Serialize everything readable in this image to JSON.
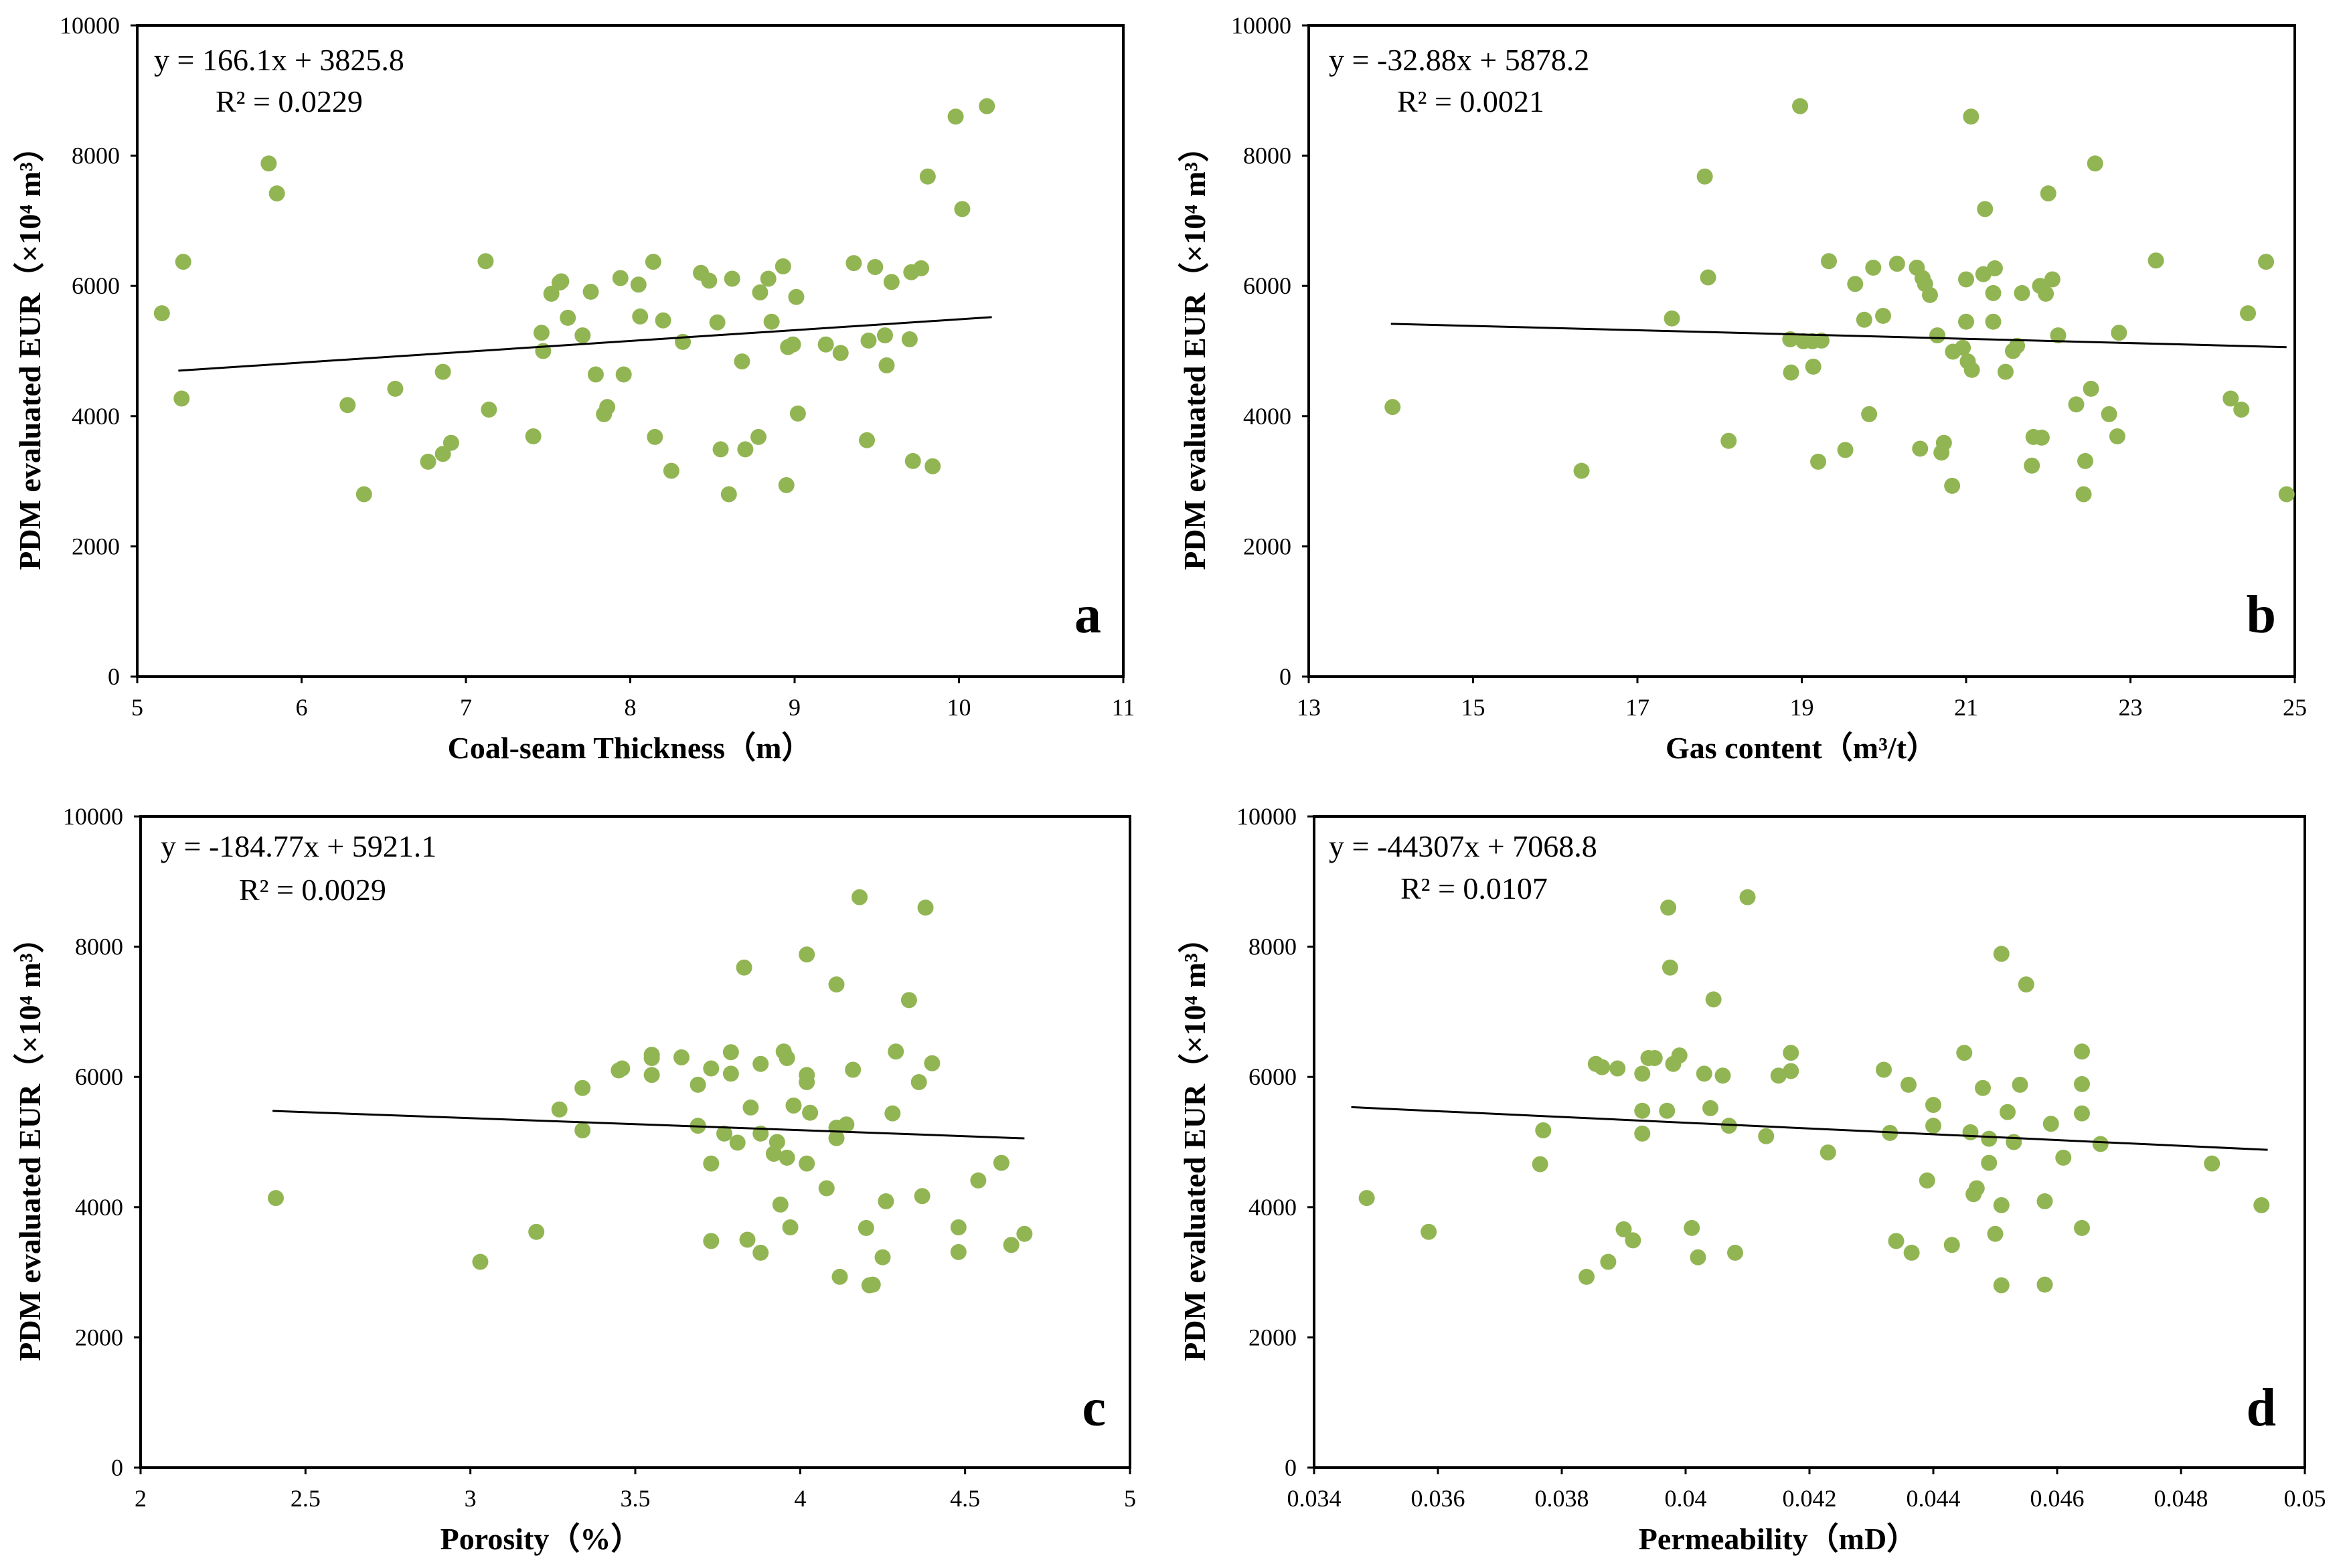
{
  "point_color": "#92B553",
  "chart_data": [
    {
      "type": "scatter",
      "panel": "a",
      "xlabel": "Coal-seam Thickness（m）",
      "ylabel": "PDM evaluated EUR（×10⁴ m³）",
      "xlim": [
        5,
        11
      ],
      "ylim": [
        0,
        10000
      ],
      "xticks": [
        "5",
        "6",
        "7",
        "8",
        "9",
        "10",
        "11"
      ],
      "yticks": [
        "0",
        "2000",
        "4000",
        "6000",
        "8000",
        "10000"
      ],
      "equation": "y = 166.1x + 3825.8",
      "r2": "R² = 0.0229",
      "trend": {
        "slope": 166.1,
        "intercept": 3825.8,
        "x_range": [
          5.25,
          10.2
        ]
      },
      "points": [
        [
          5.15,
          5580
        ],
        [
          5.27,
          4270
        ],
        [
          5.28,
          6370
        ],
        [
          5.8,
          7880
        ],
        [
          5.85,
          7420
        ],
        [
          6.28,
          4170
        ],
        [
          6.38,
          2800
        ],
        [
          6.57,
          4420
        ],
        [
          6.77,
          3300
        ],
        [
          6.86,
          3420
        ],
        [
          6.86,
          4680
        ],
        [
          6.91,
          3590
        ],
        [
          7.12,
          6380
        ],
        [
          7.14,
          4100
        ],
        [
          7.41,
          3690
        ],
        [
          7.46,
          5280
        ],
        [
          7.47,
          5000
        ],
        [
          7.52,
          5880
        ],
        [
          7.57,
          6050
        ],
        [
          7.58,
          6070
        ],
        [
          7.62,
          5510
        ],
        [
          7.71,
          5240
        ],
        [
          7.76,
          5910
        ],
        [
          7.79,
          4640
        ],
        [
          7.84,
          4030
        ],
        [
          7.86,
          4140
        ],
        [
          7.94,
          6120
        ],
        [
          7.96,
          4640
        ],
        [
          8.05,
          6020
        ],
        [
          8.06,
          5530
        ],
        [
          8.14,
          6370
        ],
        [
          8.15,
          3680
        ],
        [
          8.2,
          5470
        ],
        [
          8.25,
          3160
        ],
        [
          8.32,
          5140
        ],
        [
          8.43,
          6200
        ],
        [
          8.48,
          6080
        ],
        [
          8.53,
          5440
        ],
        [
          8.55,
          3490
        ],
        [
          8.6,
          2800
        ],
        [
          8.62,
          6110
        ],
        [
          8.68,
          4840
        ],
        [
          8.7,
          3490
        ],
        [
          8.78,
          3680
        ],
        [
          8.79,
          5900
        ],
        [
          8.84,
          6110
        ],
        [
          8.86,
          5450
        ],
        [
          8.93,
          6300
        ],
        [
          8.95,
          2940
        ],
        [
          8.96,
          5060
        ],
        [
          8.99,
          5100
        ],
        [
          9.01,
          5830
        ],
        [
          9.02,
          4040
        ],
        [
          9.19,
          5100
        ],
        [
          9.28,
          4970
        ],
        [
          9.36,
          6350
        ],
        [
          9.44,
          3630
        ],
        [
          9.45,
          5160
        ],
        [
          9.49,
          6290
        ],
        [
          9.55,
          5240
        ],
        [
          9.56,
          4780
        ],
        [
          9.59,
          6060
        ],
        [
          9.7,
          5180
        ],
        [
          9.71,
          6210
        ],
        [
          9.72,
          3310
        ],
        [
          9.77,
          6270
        ],
        [
          9.81,
          7680
        ],
        [
          9.84,
          3230
        ],
        [
          9.98,
          8600
        ],
        [
          10.02,
          7180
        ],
        [
          10.17,
          8760
        ]
      ]
    },
    {
      "type": "scatter",
      "panel": "b",
      "xlabel": "Gas content（m³/t）",
      "ylabel": "PDM evaluated EUR（×10⁴ m³）",
      "xlim": [
        13,
        25
      ],
      "ylim": [
        0,
        10000
      ],
      "xticks": [
        "13",
        "15",
        "17",
        "19",
        "21",
        "23",
        "25"
      ],
      "yticks": [
        "0",
        "2000",
        "4000",
        "6000",
        "8000",
        "10000"
      ],
      "equation": "y = -32.88x + 5878.2",
      "r2": "R² = 0.0021",
      "trend": {
        "slope": -32.88,
        "intercept": 5878.2,
        "x_range": [
          14.0,
          24.9
        ]
      },
      "points": [
        [
          14.02,
          4140
        ],
        [
          16.32,
          3160
        ],
        [
          17.42,
          5500
        ],
        [
          17.82,
          7680
        ],
        [
          17.86,
          6130
        ],
        [
          18.11,
          3620
        ],
        [
          18.86,
          5180
        ],
        [
          18.87,
          4670
        ],
        [
          18.98,
          8760
        ],
        [
          19.02,
          5150
        ],
        [
          19.13,
          5150
        ],
        [
          19.14,
          4760
        ],
        [
          19.2,
          3300
        ],
        [
          19.24,
          5160
        ],
        [
          19.33,
          6380
        ],
        [
          19.53,
          3480
        ],
        [
          19.65,
          6030
        ],
        [
          19.76,
          5480
        ],
        [
          19.82,
          4030
        ],
        [
          19.87,
          6280
        ],
        [
          19.99,
          5540
        ],
        [
          20.16,
          6340
        ],
        [
          20.4,
          6280
        ],
        [
          20.44,
          3500
        ],
        [
          20.47,
          6120
        ],
        [
          20.5,
          6030
        ],
        [
          20.56,
          5860
        ],
        [
          20.65,
          5240
        ],
        [
          20.7,
          3440
        ],
        [
          20.73,
          3590
        ],
        [
          20.83,
          2930
        ],
        [
          20.84,
          4990
        ],
        [
          20.96,
          5050
        ],
        [
          21.0,
          5450
        ],
        [
          21.0,
          6100
        ],
        [
          21.02,
          4840
        ],
        [
          21.06,
          8600
        ],
        [
          21.07,
          4710
        ],
        [
          21.21,
          6180
        ],
        [
          21.23,
          7180
        ],
        [
          21.33,
          5450
        ],
        [
          21.33,
          5890
        ],
        [
          21.35,
          6270
        ],
        [
          21.48,
          4680
        ],
        [
          21.57,
          5000
        ],
        [
          21.62,
          5080
        ],
        [
          21.68,
          5890
        ],
        [
          21.8,
          3240
        ],
        [
          21.82,
          3680
        ],
        [
          21.9,
          6000
        ],
        [
          21.92,
          3670
        ],
        [
          21.97,
          5880
        ],
        [
          22.0,
          7420
        ],
        [
          22.05,
          6100
        ],
        [
          22.12,
          5240
        ],
        [
          22.34,
          4180
        ],
        [
          22.43,
          2800
        ],
        [
          22.45,
          3310
        ],
        [
          22.52,
          4420
        ],
        [
          22.57,
          7880
        ],
        [
          22.74,
          4030
        ],
        [
          22.84,
          3690
        ],
        [
          22.86,
          5280
        ],
        [
          23.31,
          6390
        ],
        [
          24.22,
          4270
        ],
        [
          24.35,
          4100
        ],
        [
          24.43,
          5580
        ],
        [
          24.65,
          6370
        ],
        [
          24.9,
          2800
        ]
      ]
    },
    {
      "type": "scatter",
      "panel": "c",
      "xlabel": "Porosity（%）",
      "ylabel": "PDM evaluated EUR（×10⁴ m³）",
      "xlim": [
        2,
        5
      ],
      "ylim": [
        0,
        10000
      ],
      "xticks": [
        "2",
        "2.5",
        "3",
        "3.5",
        "4",
        "4.5",
        "5"
      ],
      "yticks": [
        "0",
        "2000",
        "4000",
        "6000",
        "8000",
        "10000"
      ],
      "equation": "y = -184.77x + 5921.1",
      "r2": "R² = 0.0029",
      "trend": {
        "slope": -184.77,
        "intercept": 5921.1,
        "x_range": [
          2.4,
          4.68
        ]
      },
      "points": [
        [
          2.41,
          4140
        ],
        [
          3.03,
          3160
        ],
        [
          3.2,
          3620
        ],
        [
          3.27,
          5500
        ],
        [
          3.34,
          5830
        ],
        [
          3.34,
          5180
        ],
        [
          3.45,
          6100
        ],
        [
          3.46,
          6130
        ],
        [
          3.55,
          6290
        ],
        [
          3.55,
          6030
        ],
        [
          3.55,
          6340
        ],
        [
          3.64,
          6300
        ],
        [
          3.69,
          5880
        ],
        [
          3.69,
          5250
        ],
        [
          3.73,
          6130
        ],
        [
          3.73,
          4670
        ],
        [
          3.73,
          3480
        ],
        [
          3.77,
          5130
        ],
        [
          3.79,
          6380
        ],
        [
          3.79,
          6050
        ],
        [
          3.81,
          4990
        ],
        [
          3.83,
          7680
        ],
        [
          3.84,
          3500
        ],
        [
          3.85,
          5530
        ],
        [
          3.88,
          5130
        ],
        [
          3.88,
          6200
        ],
        [
          3.88,
          3300
        ],
        [
          3.92,
          4820
        ],
        [
          3.93,
          5000
        ],
        [
          3.94,
          4040
        ],
        [
          3.95,
          6390
        ],
        [
          3.96,
          6290
        ],
        [
          3.96,
          4760
        ],
        [
          3.97,
          3690
        ],
        [
          3.98,
          5560
        ],
        [
          4.02,
          7880
        ],
        [
          4.02,
          5920
        ],
        [
          4.02,
          6030
        ],
        [
          4.02,
          4670
        ],
        [
          4.03,
          5450
        ],
        [
          4.08,
          4290
        ],
        [
          4.11,
          7420
        ],
        [
          4.11,
          5060
        ],
        [
          4.11,
          5220
        ],
        [
          4.12,
          2930
        ],
        [
          4.14,
          5270
        ],
        [
          4.16,
          6110
        ],
        [
          4.18,
          8760
        ],
        [
          4.2,
          3680
        ],
        [
          4.21,
          2800
        ],
        [
          4.22,
          2810
        ],
        [
          4.25,
          3230
        ],
        [
          4.26,
          4090
        ],
        [
          4.28,
          5440
        ],
        [
          4.29,
          6390
        ],
        [
          4.33,
          7180
        ],
        [
          4.36,
          5920
        ],
        [
          4.37,
          4170
        ],
        [
          4.38,
          8600
        ],
        [
          4.4,
          6210
        ],
        [
          4.48,
          3690
        ],
        [
          4.48,
          3310
        ],
        [
          4.54,
          4410
        ],
        [
          4.61,
          4680
        ],
        [
          4.64,
          3420
        ],
        [
          4.68,
          3590
        ]
      ]
    },
    {
      "type": "scatter",
      "panel": "d",
      "xlabel": "Permeability（mD）",
      "ylabel": "PDM evaluated EUR（×10⁴ m³）",
      "xlim": [
        0.034,
        0.05
      ],
      "ylim": [
        0,
        10000
      ],
      "xticks": [
        "0.034",
        "0.036",
        "0.038",
        "0.04",
        "0.042",
        "0.044",
        "0.046",
        "0.048",
        "0.05"
      ],
      "yticks": [
        "0",
        "2000",
        "4000",
        "6000",
        "8000",
        "10000"
      ],
      "equation": "y = -44307x + 7068.8",
      "r2": "R² = 0.0107",
      "trend": {
        "slope": -44307,
        "intercept": 7068.8,
        "x_range": [
          0.0346,
          0.0494
        ]
      },
      "points": [
        [
          0.03485,
          4140
        ],
        [
          0.03585,
          3620
        ],
        [
          0.03765,
          4660
        ],
        [
          0.0377,
          5180
        ],
        [
          0.0384,
          2930
        ],
        [
          0.03855,
          6200
        ],
        [
          0.03865,
          6150
        ],
        [
          0.03875,
          3160
        ],
        [
          0.0389,
          6130
        ],
        [
          0.039,
          3660
        ],
        [
          0.03915,
          3490
        ],
        [
          0.0393,
          6050
        ],
        [
          0.0393,
          5480
        ],
        [
          0.0393,
          5130
        ],
        [
          0.0394,
          6290
        ],
        [
          0.0395,
          6290
        ],
        [
          0.03972,
          8600
        ],
        [
          0.03975,
          7680
        ],
        [
          0.0397,
          5480
        ],
        [
          0.0398,
          6200
        ],
        [
          0.0399,
          6330
        ],
        [
          0.0401,
          3680
        ],
        [
          0.0402,
          3230
        ],
        [
          0.0403,
          6050
        ],
        [
          0.0404,
          5520
        ],
        [
          0.04045,
          7190
        ],
        [
          0.041,
          8760
        ],
        [
          0.0406,
          6020
        ],
        [
          0.0407,
          5250
        ],
        [
          0.0408,
          3300
        ],
        [
          0.0413,
          5090
        ],
        [
          0.0415,
          6020
        ],
        [
          0.0417,
          6370
        ],
        [
          0.0417,
          6090
        ],
        [
          0.0423,
          4840
        ],
        [
          0.0432,
          6110
        ],
        [
          0.0433,
          5140
        ],
        [
          0.0434,
          3480
        ],
        [
          0.0436,
          5880
        ],
        [
          0.04365,
          3300
        ],
        [
          0.0439,
          4410
        ],
        [
          0.044,
          5570
        ],
        [
          0.044,
          5250
        ],
        [
          0.0443,
          3420
        ],
        [
          0.0445,
          6370
        ],
        [
          0.0446,
          5150
        ],
        [
          0.04465,
          4200
        ],
        [
          0.0447,
          4290
        ],
        [
          0.0448,
          5830
        ],
        [
          0.0449,
          4680
        ],
        [
          0.0449,
          5050
        ],
        [
          0.045,
          3590
        ],
        [
          0.0451,
          7890
        ],
        [
          0.0451,
          4030
        ],
        [
          0.0451,
          2800
        ],
        [
          0.0452,
          5460
        ],
        [
          0.0453,
          5000
        ],
        [
          0.0454,
          5880
        ],
        [
          0.0455,
          7420
        ],
        [
          0.0458,
          2810
        ],
        [
          0.0458,
          4090
        ],
        [
          0.0459,
          5280
        ],
        [
          0.0461,
          4760
        ],
        [
          0.0464,
          6390
        ],
        [
          0.0464,
          5890
        ],
        [
          0.0464,
          5440
        ],
        [
          0.0464,
          3680
        ],
        [
          0.0467,
          4970
        ],
        [
          0.0485,
          4670
        ],
        [
          0.0493,
          4030
        ]
      ]
    }
  ]
}
